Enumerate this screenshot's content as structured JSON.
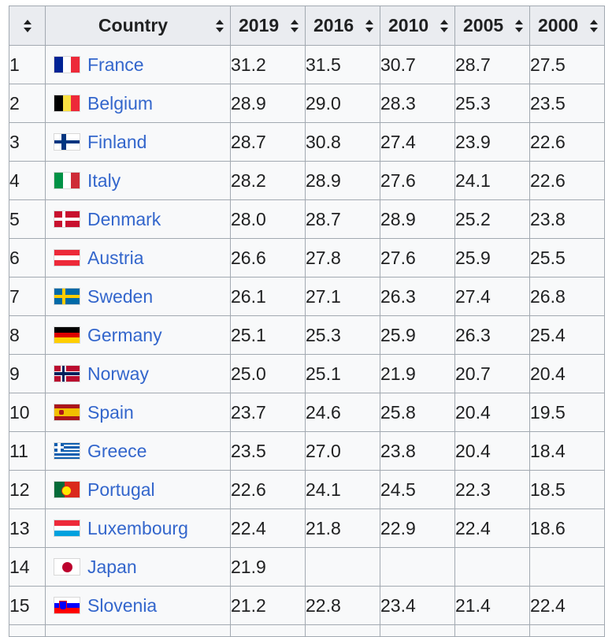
{
  "table": {
    "headers": {
      "rank": "",
      "country": "Country",
      "years": [
        "2019",
        "2016",
        "2010",
        "2005",
        "2000"
      ]
    },
    "rows": [
      {
        "rank": "1",
        "country": "France",
        "flag": "france-flag-icon",
        "v": [
          "31.2",
          "31.5",
          "30.7",
          "28.7",
          "27.5"
        ]
      },
      {
        "rank": "2",
        "country": "Belgium",
        "flag": "belgium-flag-icon",
        "v": [
          "28.9",
          "29.0",
          "28.3",
          "25.3",
          "23.5"
        ]
      },
      {
        "rank": "3",
        "country": "Finland",
        "flag": "finland-flag-icon",
        "v": [
          "28.7",
          "30.8",
          "27.4",
          "23.9",
          "22.6"
        ]
      },
      {
        "rank": "4",
        "country": "Italy",
        "flag": "italy-flag-icon",
        "v": [
          "28.2",
          "28.9",
          "27.6",
          "24.1",
          "22.6"
        ]
      },
      {
        "rank": "5",
        "country": "Denmark",
        "flag": "denmark-flag-icon",
        "v": [
          "28.0",
          "28.7",
          "28.9",
          "25.2",
          "23.8"
        ]
      },
      {
        "rank": "6",
        "country": "Austria",
        "flag": "austria-flag-icon",
        "v": [
          "26.6",
          "27.8",
          "27.6",
          "25.9",
          "25.5"
        ]
      },
      {
        "rank": "7",
        "country": "Sweden",
        "flag": "sweden-flag-icon",
        "v": [
          "26.1",
          "27.1",
          "26.3",
          "27.4",
          "26.8"
        ]
      },
      {
        "rank": "8",
        "country": "Germany",
        "flag": "germany-flag-icon",
        "v": [
          "25.1",
          "25.3",
          "25.9",
          "26.3",
          "25.4"
        ]
      },
      {
        "rank": "9",
        "country": "Norway",
        "flag": "norway-flag-icon",
        "v": [
          "25.0",
          "25.1",
          "21.9",
          "20.7",
          "20.4"
        ]
      },
      {
        "rank": "10",
        "country": "Spain",
        "flag": "spain-flag-icon",
        "v": [
          "23.7",
          "24.6",
          "25.8",
          "20.4",
          "19.5"
        ]
      },
      {
        "rank": "11",
        "country": "Greece",
        "flag": "greece-flag-icon",
        "v": [
          "23.5",
          "27.0",
          "23.8",
          "20.4",
          "18.4"
        ]
      },
      {
        "rank": "12",
        "country": "Portugal",
        "flag": "portugal-flag-icon",
        "v": [
          "22.6",
          "24.1",
          "24.5",
          "22.3",
          "18.5"
        ]
      },
      {
        "rank": "13",
        "country": "Luxembourg",
        "flag": "luxembourg-flag-icon",
        "v": [
          "22.4",
          "21.8",
          "22.9",
          "22.4",
          "18.6"
        ]
      },
      {
        "rank": "14",
        "country": "Japan",
        "flag": "japan-flag-icon",
        "v": [
          "21.9",
          "",
          "",
          "",
          ""
        ]
      },
      {
        "rank": "15",
        "country": "Slovenia",
        "flag": "slovenia-flag-icon",
        "v": [
          "21.2",
          "22.8",
          "23.4",
          "21.4",
          "22.4"
        ]
      }
    ]
  }
}
